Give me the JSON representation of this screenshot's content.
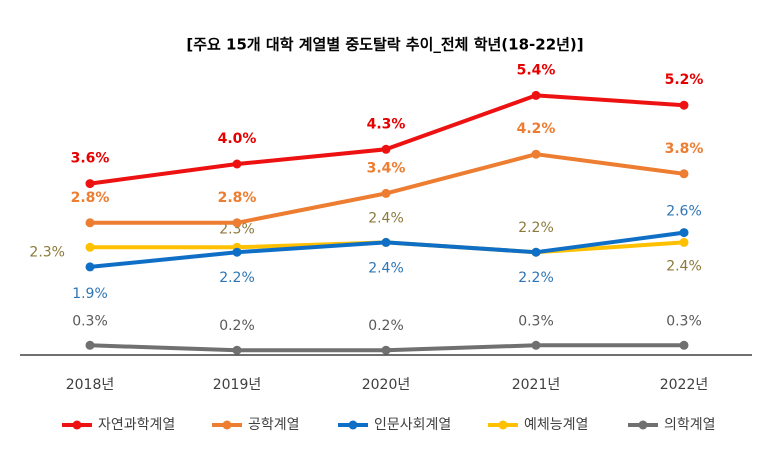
{
  "chart_data": {
    "type": "line",
    "title": "[주요 15개 대학 계열별 중도탈락 추이_전체 학년(18-22년)]",
    "categories": [
      "2018년",
      "2019년",
      "2020년",
      "2021년",
      "2022년"
    ],
    "series": [
      {
        "name": "자연과학계열",
        "color": "#ee1111",
        "values": [
          3.6,
          4.0,
          4.3,
          5.4,
          5.2
        ],
        "value_labels": [
          "3.6%",
          "4.0%",
          "4.3%",
          "5.4%",
          "5.2%"
        ]
      },
      {
        "name": "공학계열",
        "color": "#ed7d31",
        "values": [
          2.8,
          2.8,
          3.4,
          4.2,
          3.8
        ],
        "value_labels": [
          "2.8%",
          "2.8%",
          "3.4%",
          "4.2%",
          "3.8%"
        ]
      },
      {
        "name": "인문사회계열",
        "color": "#0f6fc6",
        "values": [
          1.9,
          2.2,
          2.4,
          2.2,
          2.6
        ],
        "value_labels": [
          "1.9%",
          "2.2%",
          "2.4%",
          "2.2%",
          "2.6%"
        ]
      },
      {
        "name": "예체능계열",
        "color": "#ffc000",
        "values": [
          2.3,
          2.3,
          2.4,
          2.2,
          2.4
        ],
        "value_labels": [
          "2.3%",
          "2.3%",
          "2.4%",
          "2.2%",
          "2.4%"
        ]
      },
      {
        "name": "의학계열",
        "color": "#707070",
        "values": [
          0.3,
          0.2,
          0.2,
          0.3,
          0.3
        ],
        "value_labels": [
          "0.3%",
          "0.2%",
          "0.2%",
          "0.3%",
          "0.3%"
        ]
      }
    ]
  }
}
